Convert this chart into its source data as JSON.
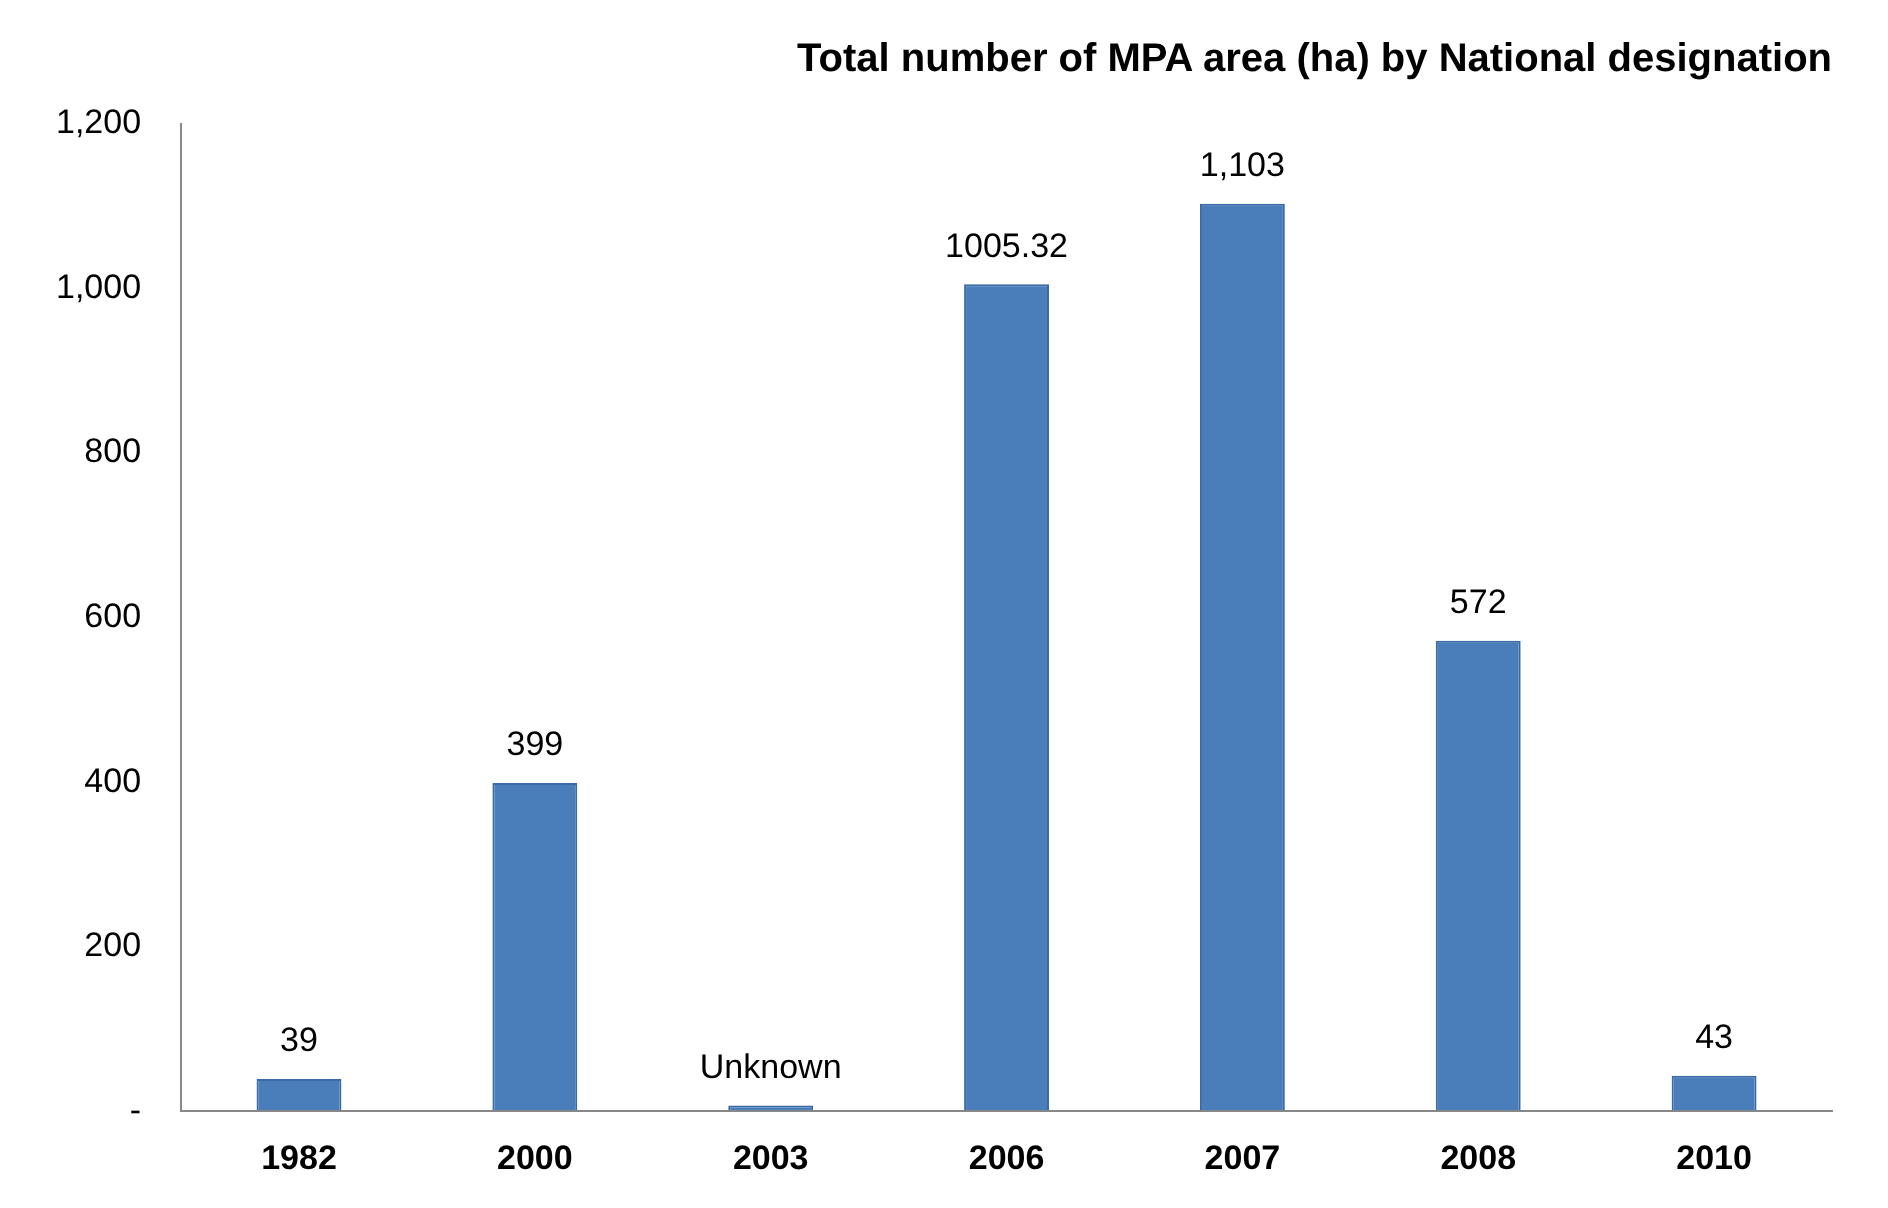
{
  "chart_data": {
    "type": "bar",
    "title": "Total number of MPA area (ha) by National designation",
    "categories": [
      "1982",
      "2000",
      "2003",
      "2006",
      "2007",
      "2008",
      "2010"
    ],
    "values": [
      39,
      399,
      7,
      1005.32,
      1103,
      572,
      43
    ],
    "value_labels": [
      "39",
      "399",
      "Unknown",
      "1005.32",
      "1,103",
      "572",
      "43"
    ],
    "color": "#4a7ebb",
    "ylim": [
      0,
      1200
    ],
    "yticks": [
      {
        "value": 0,
        "label": "-"
      },
      {
        "value": 200,
        "label": "200"
      },
      {
        "value": 400,
        "label": "400"
      },
      {
        "value": 600,
        "label": "600"
      },
      {
        "value": 800,
        "label": "800"
      },
      {
        "value": 1000,
        "label": "1,000"
      },
      {
        "value": 1200,
        "label": "1,200"
      }
    ],
    "grid": false,
    "legend": false
  }
}
